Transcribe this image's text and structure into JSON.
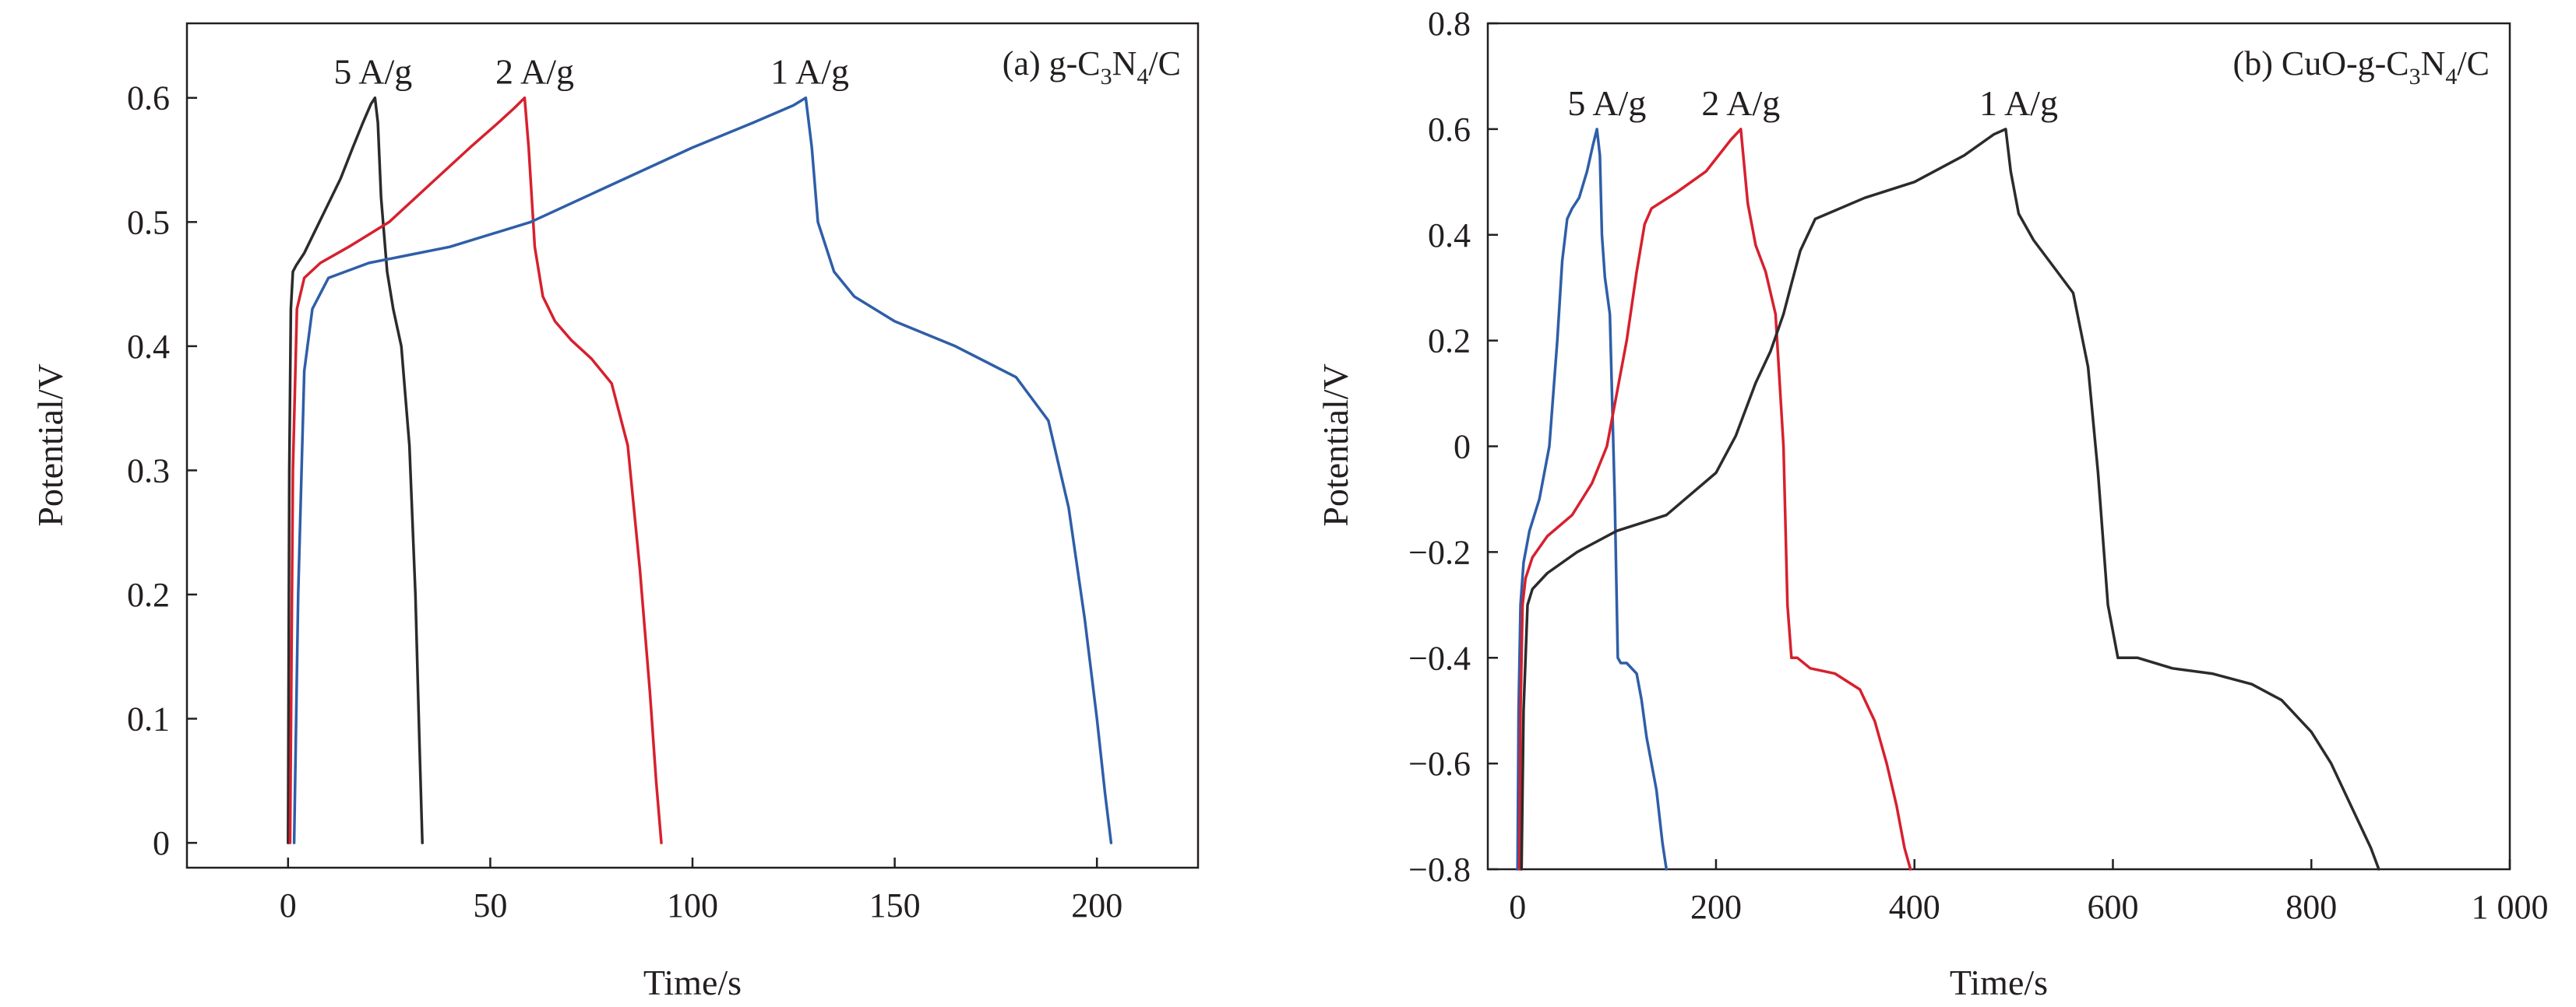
{
  "chart_data": [
    {
      "type": "line",
      "panel_label": {
        "prefix": "(a) g-C",
        "sub1": "3",
        "mid": "N",
        "sub2": "4",
        "suffix": "/C"
      },
      "xlabel": "Time/s",
      "ylabel": "Potential/V",
      "xlim": [
        -25,
        225
      ],
      "ylim": [
        -0.02,
        0.66
      ],
      "xticks": [
        0,
        50,
        100,
        150,
        200
      ],
      "xtick_labels": [
        "0",
        "50",
        "100",
        "150",
        "200"
      ],
      "yticks": [
        0,
        0.1,
        0.2,
        0.3,
        0.4,
        0.5,
        0.6
      ],
      "ytick_labels": [
        "0",
        "0.1",
        "0.2",
        "0.3",
        "0.4",
        "0.5",
        "0.6"
      ],
      "series": [
        {
          "name": "5 A/g",
          "label_at": [
            21,
            0.6
          ],
          "color": "#2b2b2b",
          "x": [
            0,
            0.3,
            0.7,
            1.2,
            2,
            4,
            7,
            10,
            13,
            16,
            18.5,
            20.5,
            21.5,
            22.2,
            23,
            24.5,
            26,
            28,
            30,
            31.5,
            32.5,
            33.2
          ],
          "y": [
            0.0,
            0.3,
            0.43,
            0.46,
            0.465,
            0.475,
            0.495,
            0.515,
            0.535,
            0.56,
            0.58,
            0.595,
            0.6,
            0.58,
            0.52,
            0.46,
            0.43,
            0.4,
            0.32,
            0.2,
            0.08,
            0.0
          ]
        },
        {
          "name": "2 A/g",
          "label_at": [
            61,
            0.6
          ],
          "color": "#d7202e",
          "x": [
            0.5,
            1.2,
            2.2,
            4,
            8,
            15,
            25,
            35,
            45,
            52,
            56,
            58.5,
            59.5,
            61,
            63,
            66,
            70,
            75,
            80,
            84,
            87,
            89.5,
            91,
            92.3
          ],
          "y": [
            0.0,
            0.3,
            0.43,
            0.455,
            0.467,
            0.48,
            0.5,
            0.53,
            0.56,
            0.58,
            0.592,
            0.6,
            0.56,
            0.48,
            0.44,
            0.42,
            0.405,
            0.39,
            0.37,
            0.32,
            0.22,
            0.12,
            0.05,
            0.0
          ]
        },
        {
          "name": "1 A/g",
          "label_at": [
            129,
            0.6
          ],
          "color": "#2f5ea8",
          "x": [
            1.5,
            2.5,
            4,
            6,
            10,
            20,
            40,
            60,
            80,
            100,
            115,
            125,
            128,
            129.5,
            131,
            135,
            140,
            150,
            165,
            180,
            188,
            193,
            197,
            200,
            202,
            203.5
          ],
          "y": [
            0.0,
            0.2,
            0.38,
            0.43,
            0.455,
            0.467,
            0.48,
            0.5,
            0.53,
            0.56,
            0.58,
            0.594,
            0.6,
            0.56,
            0.5,
            0.46,
            0.44,
            0.42,
            0.4,
            0.375,
            0.34,
            0.27,
            0.18,
            0.1,
            0.04,
            0.0
          ]
        }
      ]
    },
    {
      "type": "line",
      "panel_label": {
        "prefix": "(b) CuO-g-C",
        "sub1": "3",
        "mid": "N",
        "sub2": "4",
        "suffix": "/C"
      },
      "xlabel": "Time/s",
      "ylabel": "Potential/V",
      "xlim": [
        -30,
        1000
      ],
      "ylim": [
        -0.8,
        0.8
      ],
      "xticks": [
        0,
        200,
        400,
        600,
        800,
        1000
      ],
      "xtick_labels": [
        "0",
        "200",
        "400",
        "600",
        "800",
        "1 000"
      ],
      "yticks": [
        -0.8,
        -0.6,
        -0.4,
        -0.2,
        0,
        0.2,
        0.4,
        0.6,
        0.8
      ],
      "ytick_labels": [
        "−0.8",
        "−0.6",
        "−0.4",
        "−0.2",
        "0",
        "0.2",
        "0.4",
        "0.6",
        "0.8"
      ],
      "series": [
        {
          "name": "5 A/g",
          "label_at": [
            90,
            0.6
          ],
          "color": "#2f5ea8",
          "x": [
            0,
            1,
            3,
            6,
            12,
            22,
            32,
            40,
            45,
            50,
            55,
            62,
            70,
            76,
            80,
            83,
            85,
            88,
            93,
            98,
            101,
            104,
            110,
            120,
            125,
            130,
            140,
            146,
            150
          ],
          "y": [
            -0.8,
            -0.5,
            -0.3,
            -0.22,
            -0.16,
            -0.1,
            0.0,
            0.2,
            0.35,
            0.43,
            0.45,
            0.47,
            0.52,
            0.57,
            0.6,
            0.55,
            0.4,
            0.32,
            0.25,
            -0.1,
            -0.4,
            -0.41,
            -0.41,
            -0.43,
            -0.48,
            -0.55,
            -0.65,
            -0.75,
            -0.8
          ]
        },
        {
          "name": "2 A/g",
          "label_at": [
            225,
            0.6
          ],
          "color": "#d7202e",
          "x": [
            2,
            3,
            5,
            8,
            15,
            30,
            55,
            75,
            90,
            100,
            110,
            120,
            128,
            135,
            160,
            190,
            215,
            225,
            232,
            240,
            250,
            260,
            268,
            272,
            276,
            282,
            295,
            320,
            345,
            360,
            372,
            382,
            390,
            396
          ],
          "y": [
            -0.8,
            -0.5,
            -0.3,
            -0.25,
            -0.21,
            -0.17,
            -0.13,
            -0.07,
            0.0,
            0.1,
            0.2,
            0.33,
            0.42,
            0.45,
            0.48,
            0.52,
            0.58,
            0.6,
            0.46,
            0.38,
            0.33,
            0.25,
            0.0,
            -0.3,
            -0.4,
            -0.4,
            -0.42,
            -0.43,
            -0.46,
            -0.52,
            -0.6,
            -0.68,
            -0.76,
            -0.8
          ]
        },
        {
          "name": "1 A/g",
          "label_at": [
            505,
            0.6
          ],
          "color": "#2b2b2b",
          "x": [
            4,
            6,
            10,
            15,
            30,
            60,
            100,
            150,
            200,
            220,
            240,
            255,
            268,
            275,
            285,
            300,
            350,
            400,
            450,
            480,
            492,
            497,
            505,
            520,
            540,
            560,
            575,
            585,
            595,
            605,
            625,
            660,
            700,
            740,
            770,
            800,
            820,
            840,
            860,
            868
          ],
          "y": [
            -0.8,
            -0.5,
            -0.3,
            -0.27,
            -0.24,
            -0.2,
            -0.16,
            -0.13,
            -0.05,
            0.02,
            0.12,
            0.18,
            0.25,
            0.3,
            0.37,
            0.43,
            0.47,
            0.5,
            0.55,
            0.59,
            0.6,
            0.52,
            0.44,
            0.39,
            0.34,
            0.29,
            0.15,
            -0.05,
            -0.3,
            -0.4,
            -0.4,
            -0.42,
            -0.43,
            -0.45,
            -0.48,
            -0.54,
            -0.6,
            -0.68,
            -0.76,
            -0.8
          ]
        }
      ]
    }
  ]
}
